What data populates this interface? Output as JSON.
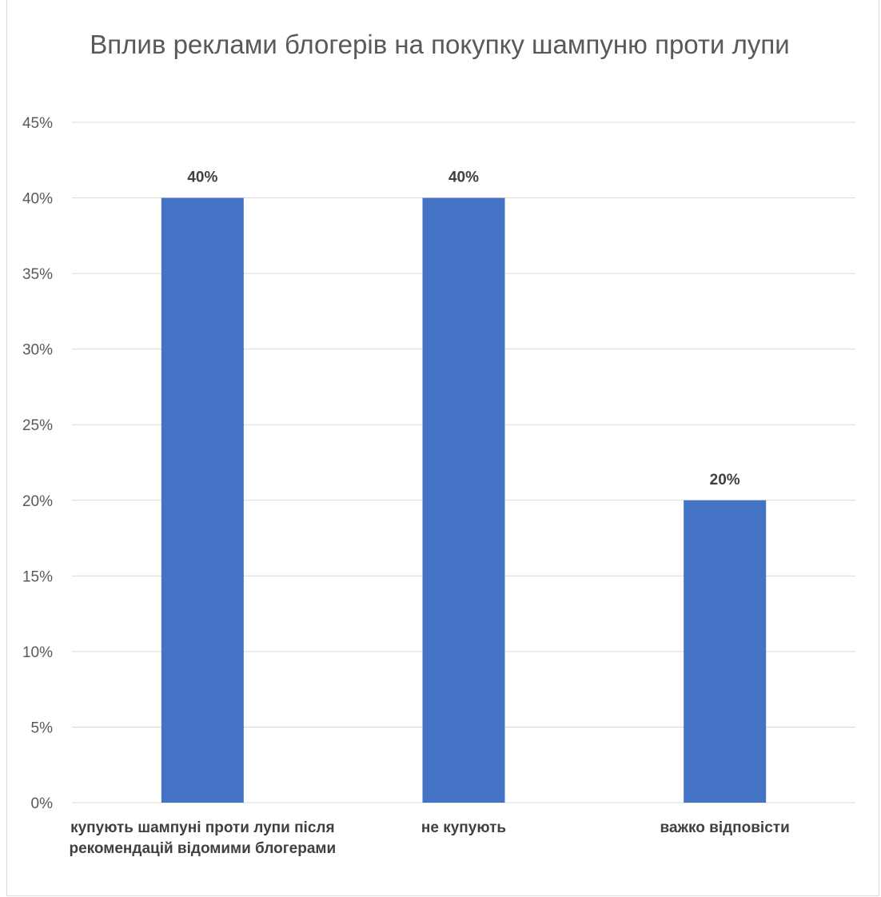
{
  "chart_data": {
    "type": "bar",
    "title": "Вплив реклами блогерів на покупку шампуню проти лупи",
    "categories": [
      "купують шампуні проти лупи після рекомендацій відомими блогерами",
      "не купують",
      "важко відповісти"
    ],
    "values": [
      40,
      40,
      20
    ],
    "data_labels": [
      "40%",
      "40%",
      "20%"
    ],
    "y_ticks": [
      "0%",
      "5%",
      "10%",
      "15%",
      "20%",
      "25%",
      "30%",
      "35%",
      "40%",
      "45%"
    ],
    "ylim": [
      0,
      45
    ],
    "ystep": 5,
    "grid": true,
    "legend": "none",
    "bar_color": "#4472c4",
    "grid_color": "#d9d9d9"
  }
}
